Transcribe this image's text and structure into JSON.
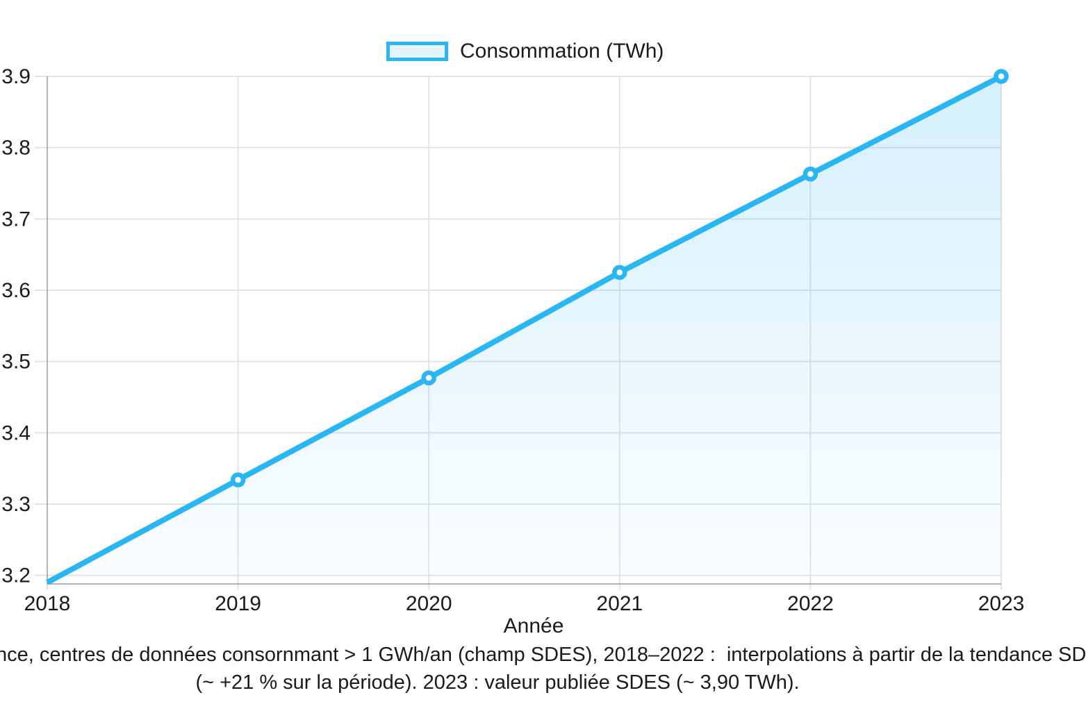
{
  "legend": {
    "label": "Consommation (TWh)"
  },
  "colors": {
    "line": "#29b6f2",
    "marker_fill": "#ffffff",
    "legend_fill": "#e7f3fb",
    "area_fill_top": "rgba(41,182,242,0.20)",
    "area_fill_bottom": "rgba(41,182,242,0.02)",
    "grid": "#e4e4e4",
    "spine": "#9b9b9b",
    "text": "#1a1a1a"
  },
  "chart_data": {
    "type": "area",
    "categories": [
      "2018",
      "2019",
      "2020",
      "2021",
      "2022",
      "2023"
    ],
    "series": [
      {
        "name": "Consommation (TWh)",
        "values": [
          3.19,
          3.334,
          3.477,
          3.625,
          3.763,
          3.9
        ]
      }
    ],
    "title": "",
    "xlabel": "Année",
    "ylabel": "",
    "y_ticks": [
      3.2,
      3.3,
      3.4,
      3.5,
      3.6,
      3.7,
      3.8,
      3.9
    ],
    "ylim": [
      3.188,
      3.9
    ],
    "grid": true,
    "legend_position": "top-center",
    "markers": true
  },
  "caption": {
    "line1": "nce, centres de données consornmant > 1 GWh/an (champ SDES), 2018–2022 :  interpolations à partir de la tendance SD",
    "line2": "(~ +21 % sur la période). 2023 : valeur publiée SDES (~ 3,90 TWh)."
  }
}
